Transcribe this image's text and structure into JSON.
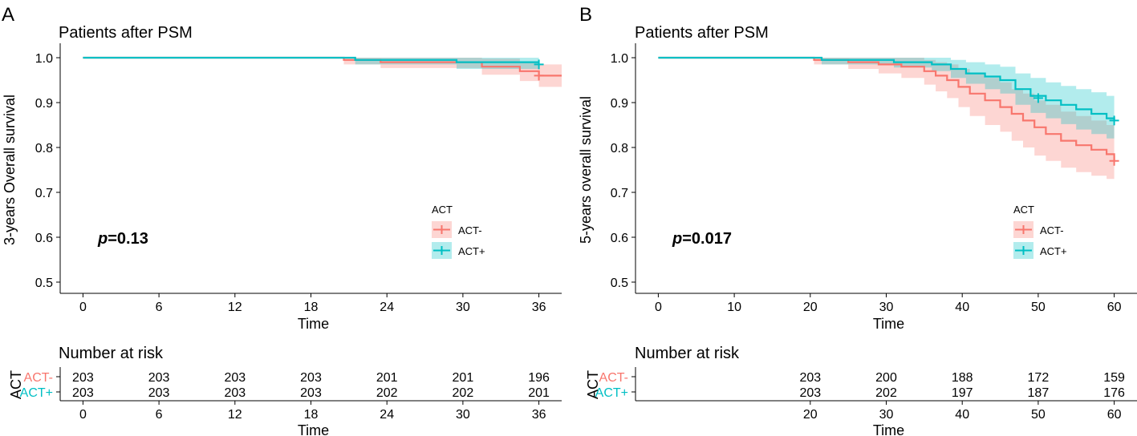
{
  "figure": {
    "colors": {
      "act_minus": "#F8766D",
      "act_plus": "#00BFC4",
      "axis": "#000000"
    }
  },
  "chart_data": [
    {
      "panel_letter": "A",
      "type": "line",
      "title": "Patients after PSM",
      "xlabel": "Time",
      "ylabel": "3-years Overall survival",
      "xlim": [
        -1.8,
        37.8
      ],
      "ylim": [
        0.475,
        1.025
      ],
      "xticks": [
        0,
        6,
        12,
        18,
        24,
        30,
        36
      ],
      "yticks": [
        0.5,
        0.6,
        0.7,
        0.8,
        0.9,
        1.0
      ],
      "ytick_labels": [
        "0.5",
        "0.6",
        "0.7",
        "0.8",
        "0.9",
        "1.0"
      ],
      "pvalue_prefix": "p",
      "pvalue_text": "=0.13",
      "legend": {
        "title": "ACT",
        "entries": [
          "ACT-",
          "ACT+"
        ],
        "position": "bottom-right"
      },
      "series": [
        {
          "name": "ACT-",
          "color": "#F8766D",
          "x": [
            0,
            20.6,
            23.5,
            31.5,
            34.5,
            36.0,
            37.8
          ],
          "y": [
            1.0,
            0.995,
            0.99,
            0.98,
            0.97,
            0.96,
            0.96
          ],
          "lower": [
            1.0,
            0.985,
            0.977,
            0.962,
            0.948,
            0.935,
            0.935
          ],
          "upper": [
            1.0,
            1.0,
            1.0,
            0.998,
            0.992,
            0.985,
            0.985
          ],
          "censor": [
            [
              36.0,
              0.96
            ]
          ]
        },
        {
          "name": "ACT+",
          "color": "#00BFC4",
          "x": [
            0,
            21.5,
            29.5,
            36.0
          ],
          "y": [
            1.0,
            0.995,
            0.99,
            0.99
          ],
          "lower": [
            1.0,
            0.985,
            0.975,
            0.975
          ],
          "upper": [
            1.0,
            1.0,
            1.0,
            1.0
          ],
          "censor": [
            [
              36.0,
              0.985
            ]
          ]
        }
      ],
      "risk_table": {
        "title": "Number at risk",
        "ylabel": "ACT",
        "xlabel": "Time",
        "times": [
          0,
          6,
          12,
          18,
          24,
          30,
          36
        ],
        "rows": [
          {
            "name": "ACT-",
            "values": [
              "203",
              "203",
              "203",
              "203",
              "201",
              "201",
              "196"
            ]
          },
          {
            "name": "ACT+",
            "values": [
              "203",
              "203",
              "203",
              "203",
              "202",
              "202",
              "201"
            ]
          }
        ]
      }
    },
    {
      "panel_letter": "B",
      "type": "line",
      "title": "Patients after PSM",
      "xlabel": "Time",
      "ylabel": "5-years overall survival",
      "xlim": [
        -3,
        63
      ],
      "ylim": [
        0.475,
        1.025
      ],
      "xticks": [
        0,
        10,
        20,
        30,
        40,
        50,
        60
      ],
      "yticks": [
        0.5,
        0.6,
        0.7,
        0.8,
        0.9,
        1.0
      ],
      "ytick_labels": [
        "0.5",
        "0.6",
        "0.7",
        "0.8",
        "0.9",
        "1.0"
      ],
      "pvalue_prefix": "p",
      "pvalue_text": "=0.017",
      "legend": {
        "title": "ACT",
        "entries": [
          "ACT-",
          "ACT+"
        ],
        "position": "bottom-right"
      },
      "series": [
        {
          "name": "ACT-",
          "color": "#F8766D",
          "x": [
            0,
            20.5,
            25,
            29,
            32,
            35,
            36.5,
            38,
            39.5,
            41,
            43,
            45,
            46.5,
            48,
            49.5,
            51,
            53,
            55,
            57,
            59,
            60
          ],
          "y": [
            1.0,
            0.995,
            0.99,
            0.985,
            0.98,
            0.97,
            0.96,
            0.95,
            0.935,
            0.92,
            0.905,
            0.89,
            0.875,
            0.86,
            0.845,
            0.83,
            0.815,
            0.805,
            0.795,
            0.785,
            0.77
          ],
          "lower": [
            1.0,
            0.985,
            0.975,
            0.965,
            0.955,
            0.94,
            0.925,
            0.91,
            0.89,
            0.87,
            0.85,
            0.835,
            0.815,
            0.8,
            0.782,
            0.77,
            0.755,
            0.745,
            0.737,
            0.73,
            0.725
          ],
          "upper": [
            1.0,
            1.0,
            1.0,
            1.0,
            1.0,
            0.995,
            0.99,
            0.985,
            0.975,
            0.965,
            0.955,
            0.945,
            0.93,
            0.92,
            0.905,
            0.895,
            0.88,
            0.87,
            0.86,
            0.85,
            0.845
          ],
          "censor": [
            [
              60,
              0.77
            ]
          ]
        },
        {
          "name": "ACT+",
          "color": "#00BFC4",
          "x": [
            0,
            21.5,
            31,
            36,
            38.5,
            40.5,
            43,
            45,
            47,
            49,
            51,
            53,
            55,
            57,
            59,
            60
          ],
          "y": [
            1.0,
            0.995,
            0.99,
            0.985,
            0.975,
            0.965,
            0.958,
            0.95,
            0.93,
            0.915,
            0.905,
            0.895,
            0.885,
            0.875,
            0.865,
            0.86
          ],
          "lower": [
            1.0,
            0.985,
            0.978,
            0.97,
            0.955,
            0.942,
            0.93,
            0.92,
            0.895,
            0.877,
            0.865,
            0.852,
            0.84,
            0.83,
            0.82,
            0.815
          ],
          "upper": [
            1.0,
            1.0,
            1.0,
            1.0,
            0.995,
            0.99,
            0.985,
            0.98,
            0.965,
            0.955,
            0.945,
            0.937,
            0.93,
            0.923,
            0.915,
            0.91
          ],
          "censor": [
            [
              50,
              0.91
            ],
            [
              60,
              0.86
            ]
          ]
        }
      ],
      "risk_table": {
        "title": "Number at risk",
        "ylabel": "ACT",
        "xlabel": "Time",
        "times": [
          20,
          30,
          40,
          50,
          60
        ],
        "rows": [
          {
            "name": "ACT-",
            "values": [
              "203",
              "200",
              "188",
              "172",
              "159"
            ]
          },
          {
            "name": "ACT+",
            "values": [
              "203",
              "202",
              "197",
              "187",
              "176"
            ]
          }
        ]
      }
    }
  ]
}
